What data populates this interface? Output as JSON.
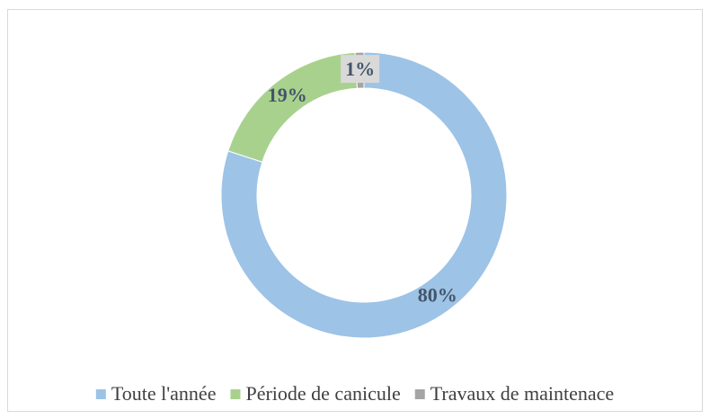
{
  "chart_data": {
    "type": "donut",
    "categories": [
      "Toute l'année",
      "Période de canicule",
      "Travaux de maintenace"
    ],
    "values": [
      80,
      19,
      1
    ],
    "value_labels": [
      "80%",
      "19%",
      "1%"
    ],
    "colors": [
      "#9dc3e6",
      "#a9d18e",
      "#a5a5a5"
    ],
    "legend": "bottom"
  }
}
